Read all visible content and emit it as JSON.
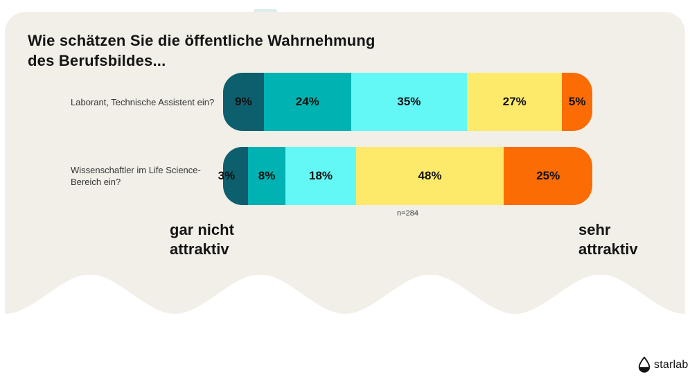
{
  "title": "Wie schätzen Sie die öffentliche Wahrnehmung\ndes Berufsbildes...",
  "chart_data": {
    "type": "bar",
    "orientation": "horizontal",
    "stacked": true,
    "unit": "%",
    "rows": [
      {
        "label": "Laborant, Technische Assistent ein?",
        "values": [
          9,
          24,
          35,
          27,
          5
        ],
        "labels": [
          "9%",
          "24%",
          "35%",
          "27%",
          "5%"
        ]
      },
      {
        "label": "Wissenschaftler im Life Science-\nBereich ein?",
        "values": [
          3,
          8,
          18,
          48,
          25
        ],
        "labels": [
          "3%",
          "8%",
          "18%",
          "48%",
          "25%"
        ]
      }
    ],
    "segment_colors": [
      "#0d5f6e",
      "#00b2b2",
      "#63f8f6",
      "#fdea6b",
      "#fb6c04"
    ],
    "scale": {
      "min_label": "gar nicht\nattraktiv",
      "max_label": "sehr\nattraktiv"
    },
    "sample_note": "n=284"
  },
  "colors": {
    "card_background": "#f2efe8",
    "page_background": "#ffffff",
    "text": "#141414"
  },
  "logo": {
    "text": "starlab"
  }
}
